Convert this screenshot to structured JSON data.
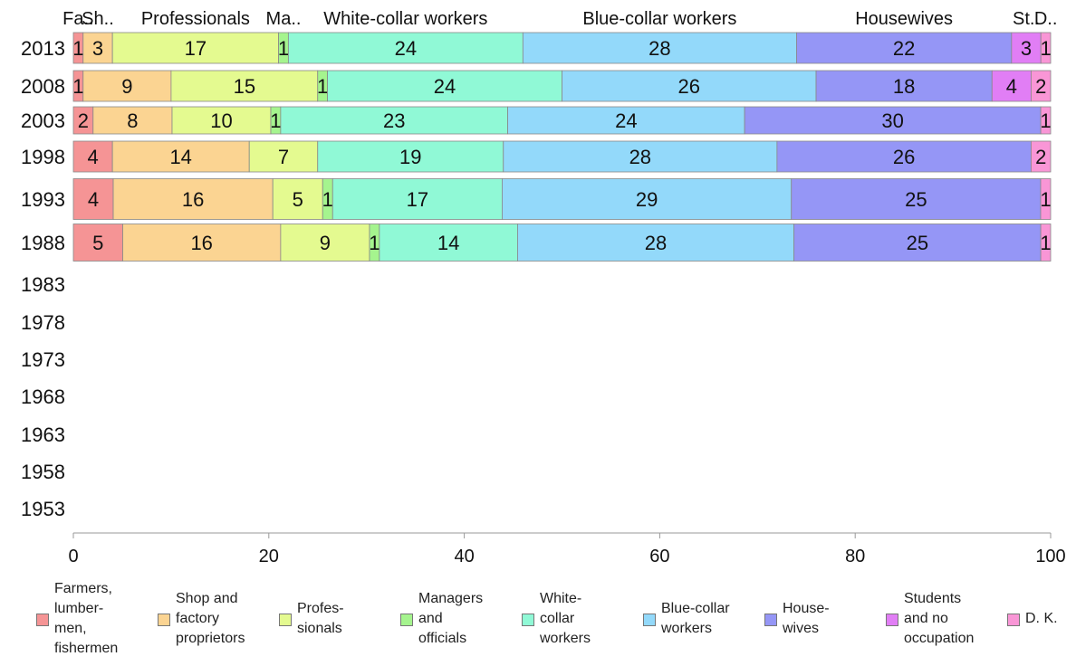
{
  "chart_data": {
    "type": "bar",
    "orientation": "horizontal",
    "stacked": true,
    "categories": [
      "2013",
      "2008",
      "2003",
      "1998",
      "1993",
      "1988",
      "1983",
      "1978",
      "1973",
      "1968",
      "1963",
      "1958",
      "1953"
    ],
    "xlim": [
      0,
      100
    ],
    "xticks": [
      "0",
      "20",
      "40",
      "60",
      "80",
      "100"
    ],
    "grid": false,
    "legend_position": "bottom",
    "top_labels": [
      "Fa..",
      "Sh..",
      "Professionals",
      "Ma..",
      "White-collar workers",
      "Blue-collar workers",
      "Housewives",
      "St..",
      "D.."
    ],
    "series": [
      {
        "name": "Farmers, lumbermen, fishermen",
        "legend_label": "Farmers,\nlumber-\nmen,\nfishermen",
        "color": "#f59495",
        "values": [
          1,
          1,
          2,
          4,
          4,
          5,
          null,
          null,
          null,
          null,
          null,
          null,
          null
        ]
      },
      {
        "name": "Shop and factory proprietors",
        "legend_label": "Shop and\nfactory\nproprietors",
        "color": "#fbd492",
        "values": [
          3,
          9,
          8,
          14,
          16,
          16,
          null,
          null,
          null,
          null,
          null,
          null,
          null
        ]
      },
      {
        "name": "Professionals",
        "legend_label": "Profes-\nsionals",
        "color": "#e4fa90",
        "values": [
          17,
          15,
          10,
          7,
          5,
          9,
          null,
          null,
          null,
          null,
          null,
          null,
          null
        ]
      },
      {
        "name": "Managers and officials",
        "legend_label": "Managers\nand\nofficials",
        "color": "#a5f48e",
        "values": [
          1,
          1,
          1,
          0,
          1,
          1,
          null,
          null,
          null,
          null,
          null,
          null,
          null
        ]
      },
      {
        "name": "White-collar workers",
        "legend_label": "White-\ncollar\nworkers",
        "color": "#90f9d6",
        "values": [
          24,
          24,
          23,
          19,
          17,
          14,
          null,
          null,
          null,
          null,
          null,
          null,
          null
        ]
      },
      {
        "name": "Blue-collar workers",
        "legend_label": "Blue-collar\nworkers",
        "color": "#93d9fa",
        "values": [
          28,
          26,
          24,
          28,
          29,
          28,
          null,
          null,
          null,
          null,
          null,
          null,
          null
        ]
      },
      {
        "name": "Housewives",
        "legend_label": "House-\nwives",
        "color": "#9596f6",
        "values": [
          22,
          18,
          30,
          26,
          25,
          25,
          null,
          null,
          null,
          null,
          null,
          null,
          null
        ]
      },
      {
        "name": "Students and no occupation",
        "legend_label": "Students\nand no\noccupation",
        "color": "#e17ef5",
        "values": [
          3,
          4,
          0,
          0,
          0,
          0,
          null,
          null,
          null,
          null,
          null,
          null,
          null
        ]
      },
      {
        "name": "D. K.",
        "legend_label": "D. K.",
        "color": "#f996d6",
        "values": [
          1,
          2,
          1,
          2,
          1,
          1,
          null,
          null,
          null,
          null,
          null,
          null,
          null
        ]
      }
    ]
  }
}
